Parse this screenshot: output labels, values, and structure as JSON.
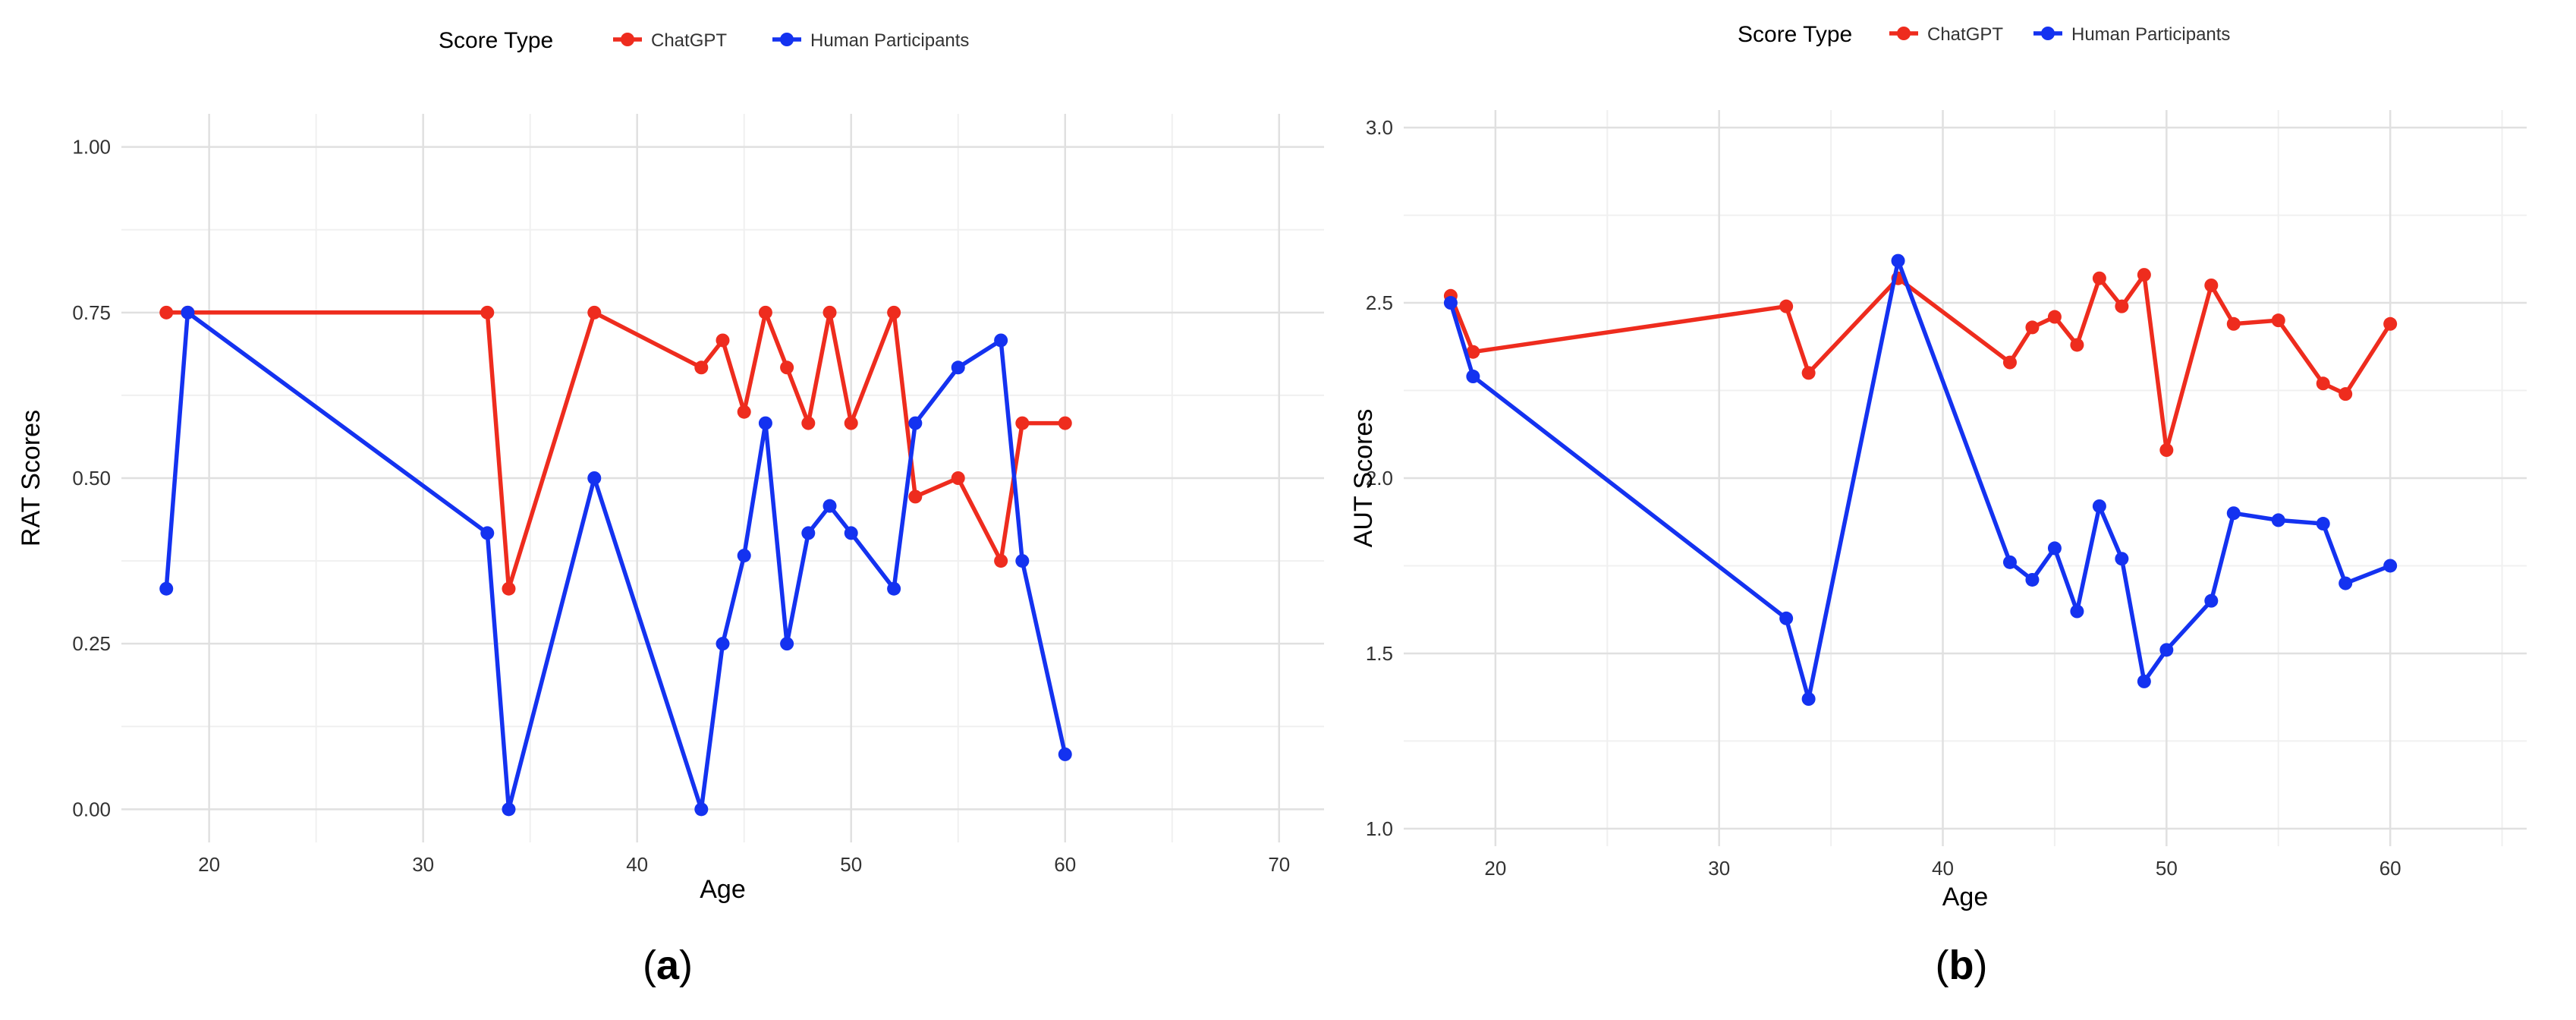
{
  "colors": {
    "chatgpt": "#ee2c1e",
    "human": "#1432f0",
    "grid_major": "#e0e0e0",
    "grid_minor": "#f0f0f0",
    "text": "#333333",
    "axis_title": "#000000"
  },
  "chart_data": [
    {
      "type": "line",
      "panel_label": "(a)",
      "panel_letter": "a",
      "legend": {
        "title": "Score Type",
        "placement": "top-center",
        "entries": [
          "ChatGPT",
          "Human Participants"
        ]
      },
      "xlabel": "Age",
      "ylabel": "RAT Scores",
      "xlim": [
        15.9,
        72.1
      ],
      "ylim": [
        -0.05,
        1.05
      ],
      "xticks": [
        20,
        30,
        40,
        50,
        60,
        70
      ],
      "xtick_labels": [
        "20",
        "30",
        "40",
        "50",
        "60",
        "70"
      ],
      "yticks": [
        0,
        0.25,
        0.5,
        0.75,
        1.0
      ],
      "ytick_labels": [
        "0.00",
        "0.25",
        "0.50",
        "0.75",
        "1.00"
      ],
      "grid": true,
      "series": [
        {
          "name": "ChatGPT",
          "color": "#ee2c1e",
          "points": [
            [
              18,
              0.75
            ],
            [
              19,
              0.75
            ],
            [
              33,
              0.75
            ],
            [
              34,
              0.333
            ],
            [
              38,
              0.75
            ],
            [
              43,
              0.667
            ],
            [
              44,
              0.708
            ],
            [
              45,
              0.6
            ],
            [
              46,
              0.75
            ],
            [
              47,
              0.667
            ],
            [
              48,
              0.583
            ],
            [
              49,
              0.75
            ],
            [
              50,
              0.583
            ],
            [
              52,
              0.75
            ],
            [
              53,
              0.472
            ],
            [
              55,
              0.5
            ],
            [
              57,
              0.375
            ],
            [
              58,
              0.583
            ],
            [
              60,
              0.583
            ]
          ]
        },
        {
          "name": "Human Participants",
          "color": "#1432f0",
          "points": [
            [
              18,
              0.333
            ],
            [
              19,
              0.75
            ],
            [
              33,
              0.417
            ],
            [
              34,
              0.0
            ],
            [
              38,
              0.5
            ],
            [
              43,
              0.0
            ],
            [
              44,
              0.25
            ],
            [
              45,
              0.383
            ],
            [
              46,
              0.583
            ],
            [
              47,
              0.25
            ],
            [
              48,
              0.417
            ],
            [
              49,
              0.458
            ],
            [
              50,
              0.417
            ],
            [
              52,
              0.333
            ],
            [
              53,
              0.583
            ],
            [
              55,
              0.667
            ],
            [
              57,
              0.708
            ],
            [
              58,
              0.375
            ],
            [
              60,
              0.083
            ]
          ]
        }
      ]
    },
    {
      "type": "line",
      "panel_label": "(b)",
      "panel_letter": "b",
      "legend": {
        "title": "Score Type",
        "placement": "top-center",
        "entries": [
          "ChatGPT",
          "Human Participants"
        ]
      },
      "xlabel": "Age",
      "ylabel": "AUT Scores",
      "xlim": [
        15.9,
        66.1
      ],
      "ylim": [
        0.95,
        3.05
      ],
      "xticks": [
        20,
        30,
        40,
        50,
        60
      ],
      "xtick_labels": [
        "20",
        "30",
        "40",
        "50",
        "60"
      ],
      "yticks": [
        1.0,
        1.5,
        2.0,
        2.5,
        3.0
      ],
      "ytick_labels": [
        "1.0",
        "1.5",
        "2.0",
        "2.5",
        "3.0"
      ],
      "grid": true,
      "series": [
        {
          "name": "ChatGPT",
          "color": "#ee2c1e",
          "points": [
            [
              18,
              2.52
            ],
            [
              19,
              2.36
            ],
            [
              33,
              2.49
            ],
            [
              34,
              2.3
            ],
            [
              38,
              2.57
            ],
            [
              43,
              2.33
            ],
            [
              44,
              2.43
            ],
            [
              45,
              2.46
            ],
            [
              46,
              2.38
            ],
            [
              47,
              2.57
            ],
            [
              48,
              2.49
            ],
            [
              49,
              2.58
            ],
            [
              50,
              2.08
            ],
            [
              52,
              2.55
            ],
            [
              53,
              2.44
            ],
            [
              55,
              2.45
            ],
            [
              57,
              2.27
            ],
            [
              58,
              2.24
            ],
            [
              60,
              2.44
            ]
          ]
        },
        {
          "name": "Human Participants",
          "color": "#1432f0",
          "points": [
            [
              18,
              2.5
            ],
            [
              19,
              2.29
            ],
            [
              33,
              1.6
            ],
            [
              34,
              1.37
            ],
            [
              38,
              2.62
            ],
            [
              43,
              1.76
            ],
            [
              44,
              1.71
            ],
            [
              45,
              1.8
            ],
            [
              46,
              1.62
            ],
            [
              47,
              1.92
            ],
            [
              48,
              1.77
            ],
            [
              49,
              1.42
            ],
            [
              50,
              1.51
            ],
            [
              52,
              1.65
            ],
            [
              53,
              1.9
            ],
            [
              55,
              1.88
            ],
            [
              57,
              1.87
            ],
            [
              58,
              1.7
            ],
            [
              60,
              1.75
            ]
          ]
        }
      ]
    }
  ]
}
